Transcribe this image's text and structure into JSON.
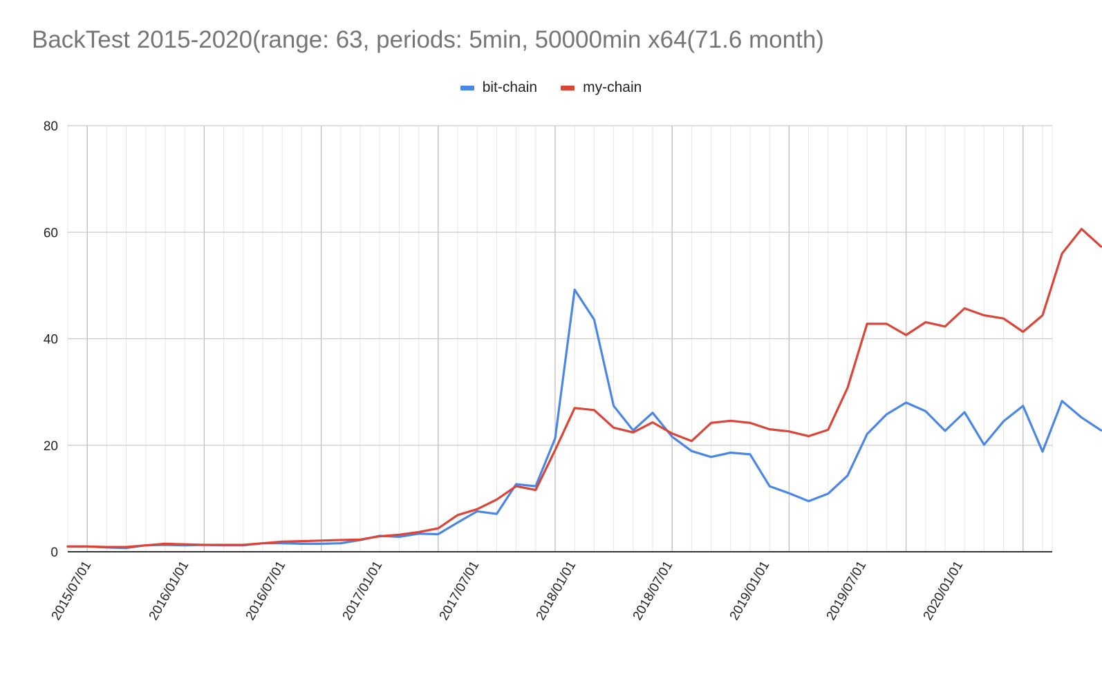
{
  "chart_data": {
    "type": "line",
    "title": "BackTest 2015-2020(range: 63, periods: 5min, 50000min x64(71.6 month)",
    "xlabel": "",
    "ylabel": "",
    "ylim": [
      0,
      80
    ],
    "yticks": [
      0,
      20,
      40,
      60,
      80
    ],
    "xtick_labels": [
      "2015/07/01",
      "2016/01/01",
      "2016/07/01",
      "2017/01/01",
      "2017/07/01",
      "2018/01/01",
      "2018/07/01",
      "2019/01/01",
      "2019/07/01",
      "2020/01/01"
    ],
    "grid": true,
    "legend_position": "top-center",
    "series": [
      {
        "name": "bit-chain",
        "color": "#4a86e8",
        "values": [
          1.0,
          1.0,
          0.8,
          0.7,
          1.2,
          1.3,
          1.2,
          1.3,
          1.2,
          1.2,
          1.6,
          1.6,
          1.5,
          1.5,
          1.6,
          2.2,
          3.0,
          2.8,
          3.4,
          3.3,
          5.5,
          7.6,
          7.1,
          12.7,
          12.3,
          21.3,
          49.2,
          43.6,
          27.4,
          22.8,
          26.1,
          21.6,
          18.9,
          17.8,
          18.6,
          18.3,
          12.3,
          11.0,
          9.5,
          10.9,
          14.3,
          22.1,
          25.8,
          28.0,
          26.4,
          22.7,
          26.2,
          20.1,
          24.5,
          27.4,
          18.8,
          28.3,
          25.2,
          22.8
        ]
      },
      {
        "name": "my-chain",
        "color": "#db4437",
        "values": [
          1.0,
          1.0,
          0.9,
          0.9,
          1.2,
          1.5,
          1.4,
          1.3,
          1.3,
          1.3,
          1.6,
          1.9,
          2.0,
          2.1,
          2.2,
          2.3,
          2.9,
          3.2,
          3.7,
          4.4,
          6.9,
          8.0,
          9.8,
          12.3,
          11.6,
          19.1,
          27.0,
          26.6,
          23.3,
          22.4,
          24.3,
          22.2,
          20.8,
          24.2,
          24.6,
          24.2,
          23.0,
          22.6,
          21.7,
          22.9,
          30.8,
          42.8,
          42.8,
          40.7,
          43.1,
          42.3,
          45.7,
          44.4,
          43.8,
          41.3,
          44.4,
          56.0,
          60.6,
          57.3
        ]
      }
    ]
  }
}
